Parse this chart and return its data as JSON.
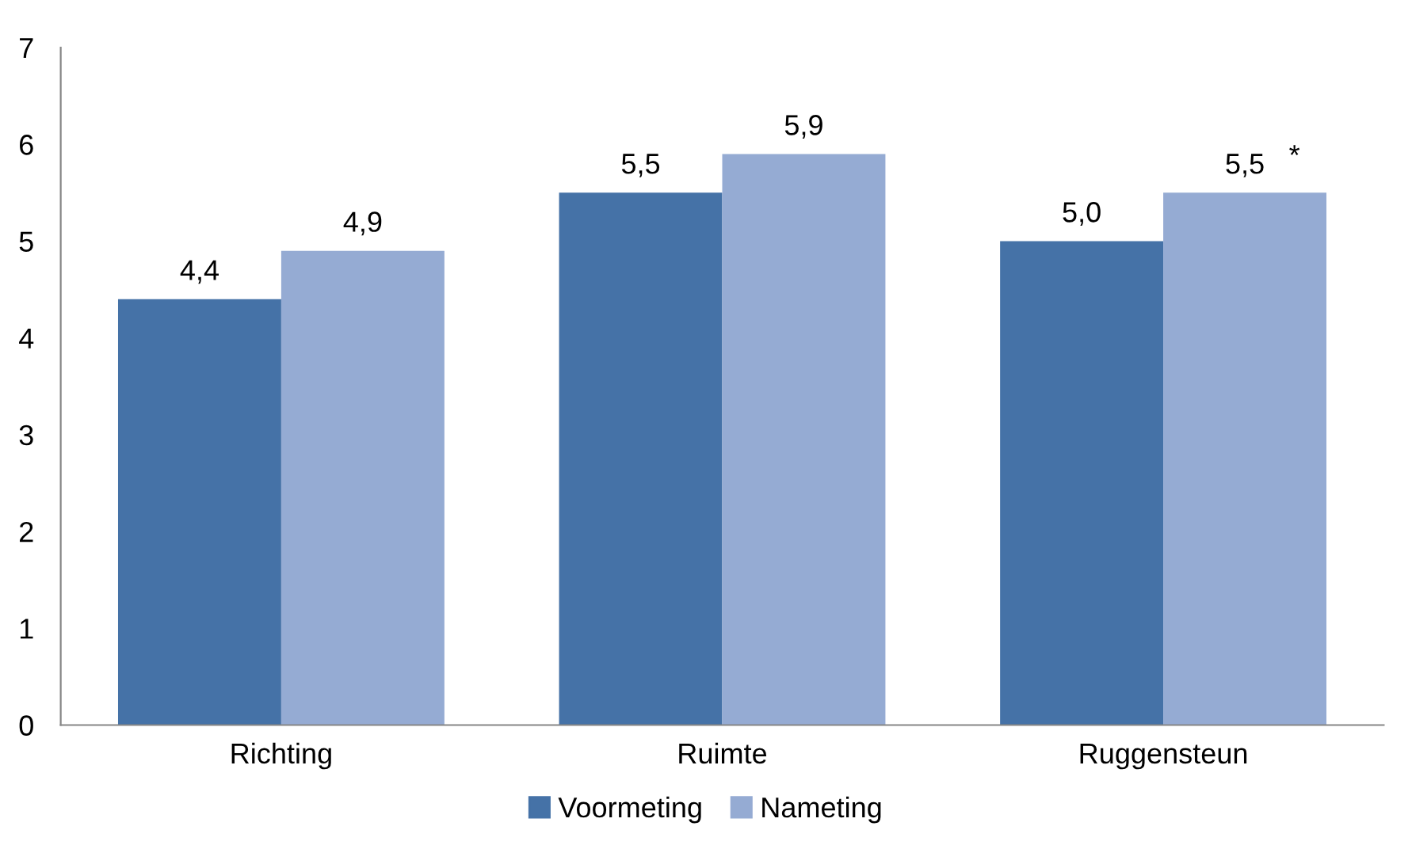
{
  "chart_data": {
    "type": "bar",
    "categories": [
      "Richting",
      "Ruimte",
      "Ruggensteun"
    ],
    "series": [
      {
        "name": "Voormeting",
        "color": "#4572a7",
        "values": [
          4.4,
          5.5,
          5.0
        ],
        "value_labels": [
          "4,4",
          "5,5",
          "5,0"
        ]
      },
      {
        "name": "Nameting",
        "color": "#95abd3",
        "values": [
          4.9,
          5.9,
          5.5
        ],
        "value_labels": [
          "4,9",
          "5,9",
          "5,5"
        ]
      }
    ],
    "annotations": [
      "*"
    ],
    "ylim": [
      0,
      7
    ],
    "yticks": [
      0,
      1,
      2,
      3,
      4,
      5,
      6,
      7
    ],
    "grid": false,
    "legend": "bottom"
  }
}
